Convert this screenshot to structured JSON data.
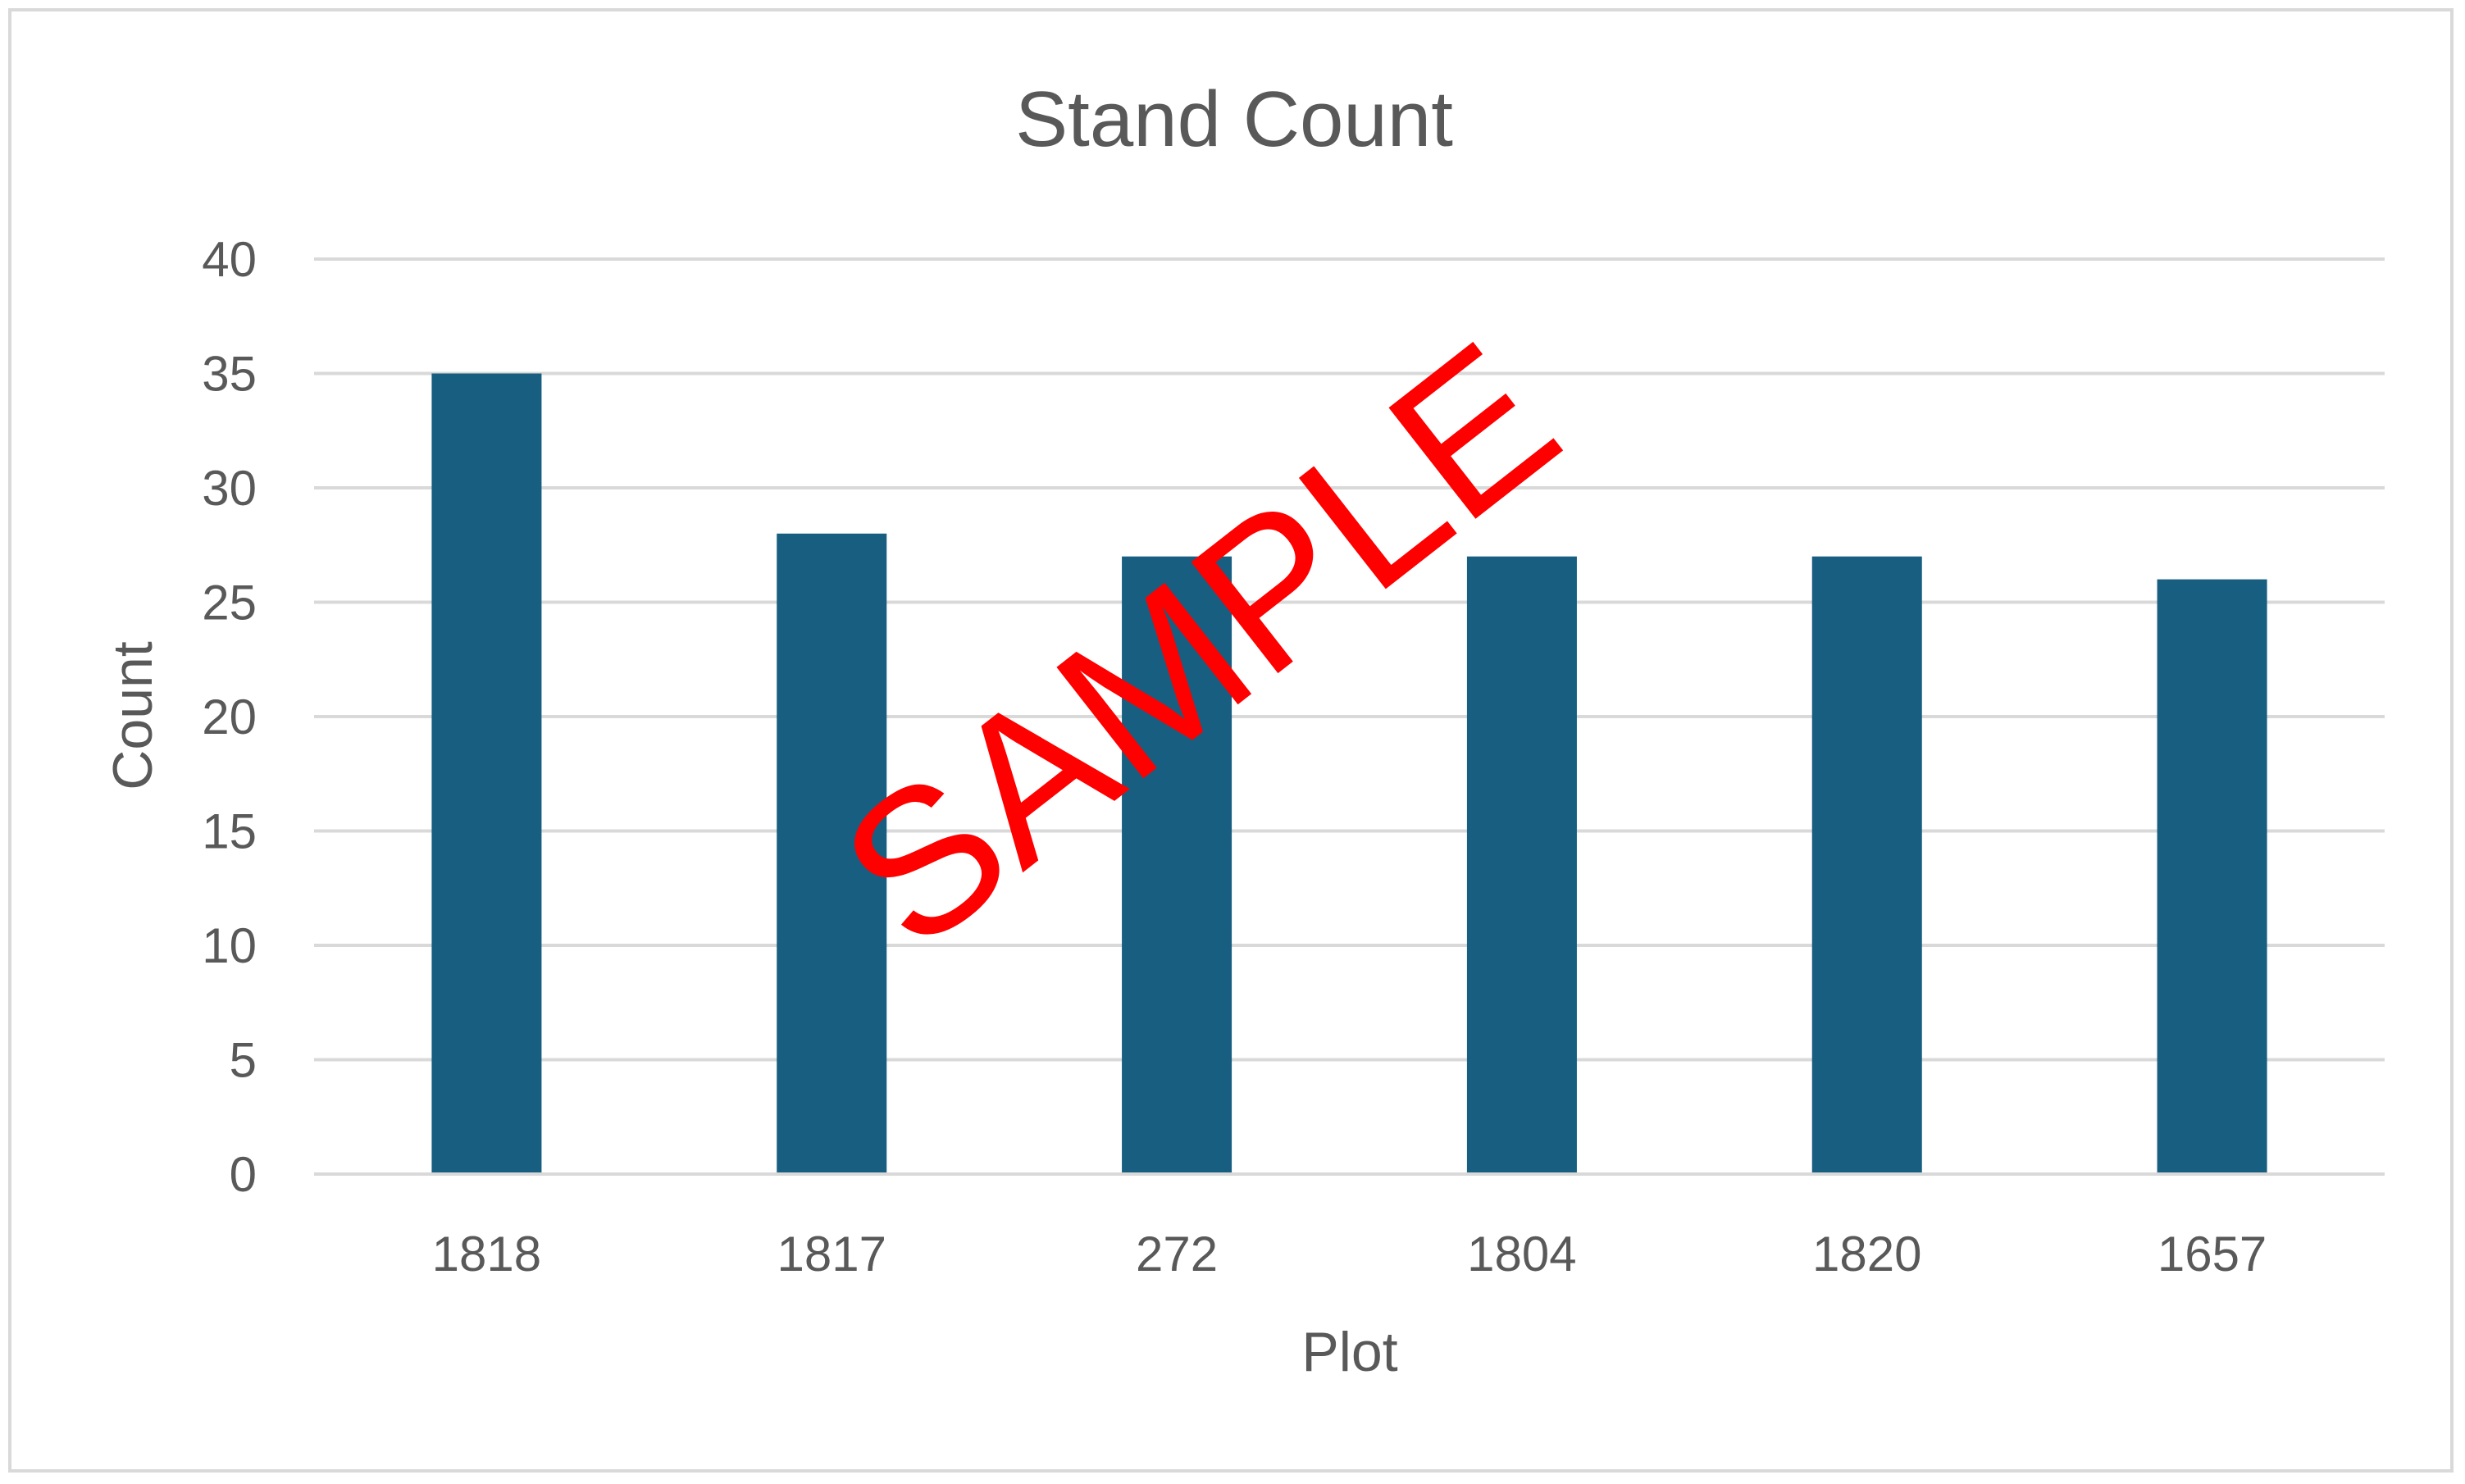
{
  "chart_data": {
    "type": "bar",
    "title": "Stand Count",
    "xlabel": "Plot",
    "ylabel": "Count",
    "categories": [
      "1818",
      "1817",
      "272",
      "1804",
      "1820",
      "1657"
    ],
    "series": [
      {
        "values": [
          35,
          28,
          27,
          27,
          27,
          26
        ]
      }
    ],
    "ylim": [
      0,
      40
    ],
    "yticks": [
      "0",
      "5",
      "10",
      "15",
      "20",
      "25",
      "30",
      "35",
      "40"
    ],
    "grid": true,
    "legend": "none",
    "colors": {
      "bar": "#175E80",
      "gridline": "#d9d9d9",
      "text": "#595959",
      "watermark": "#ff0000"
    }
  },
  "watermark": {
    "text": "SAMPLE"
  }
}
